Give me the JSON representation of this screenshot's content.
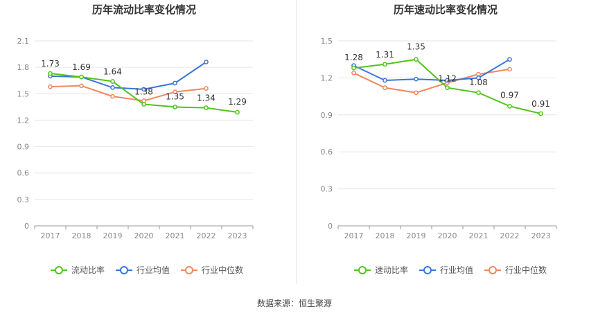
{
  "footer": {
    "source_label": "数据来源：恒生聚源"
  },
  "colors": {
    "green": "#52c41a",
    "blue": "#3a75d8",
    "orange": "#f0875f"
  },
  "chart_data": [
    {
      "type": "line",
      "title": "历年流动比率变化情况",
      "categories": [
        "2017",
        "2018",
        "2019",
        "2020",
        "2021",
        "2022",
        "2023"
      ],
      "ylim": [
        0,
        2.1
      ],
      "yticks": [
        "0",
        "0.3",
        "0.6",
        "0.9",
        "1.2",
        "1.5",
        "1.8",
        "2.1"
      ],
      "grid": true,
      "legend_position": "bottom",
      "series": [
        {
          "name": "流动比率",
          "color": "#52c41a",
          "values": [
            1.73,
            1.69,
            1.64,
            1.38,
            1.35,
            1.34,
            1.29
          ],
          "labels": [
            "1.73",
            "1.69",
            "1.64",
            "1.38",
            "1.35",
            "1.34",
            "1.29"
          ]
        },
        {
          "name": "行业均值",
          "color": "#3a75d8",
          "values": [
            1.7,
            1.69,
            1.57,
            1.55,
            1.62,
            1.86,
            null
          ]
        },
        {
          "name": "行业中位数",
          "color": "#f0875f",
          "values": [
            1.58,
            1.59,
            1.47,
            1.42,
            1.52,
            1.56,
            null
          ]
        }
      ]
    },
    {
      "type": "line",
      "title": "历年速动比率变化情况",
      "categories": [
        "2017",
        "2018",
        "2019",
        "2020",
        "2021",
        "2022",
        "2023"
      ],
      "ylim": [
        0,
        1.5
      ],
      "yticks": [
        "0",
        "0.3",
        "0.6",
        "0.9",
        "1.2",
        "1.5"
      ],
      "grid": true,
      "legend_position": "bottom",
      "series": [
        {
          "name": "速动比率",
          "color": "#52c41a",
          "values": [
            1.28,
            1.31,
            1.35,
            1.12,
            1.08,
            0.97,
            0.91
          ],
          "labels": [
            "1.28",
            "1.31",
            "1.35",
            "1.12",
            "1.08",
            "0.97",
            "0.91"
          ]
        },
        {
          "name": "行业均值",
          "color": "#3a75d8",
          "values": [
            1.3,
            1.18,
            1.19,
            1.18,
            1.2,
            1.35,
            null
          ]
        },
        {
          "name": "行业中位数",
          "color": "#f0875f",
          "values": [
            1.24,
            1.12,
            1.08,
            1.16,
            1.23,
            1.27,
            null
          ]
        }
      ]
    }
  ]
}
